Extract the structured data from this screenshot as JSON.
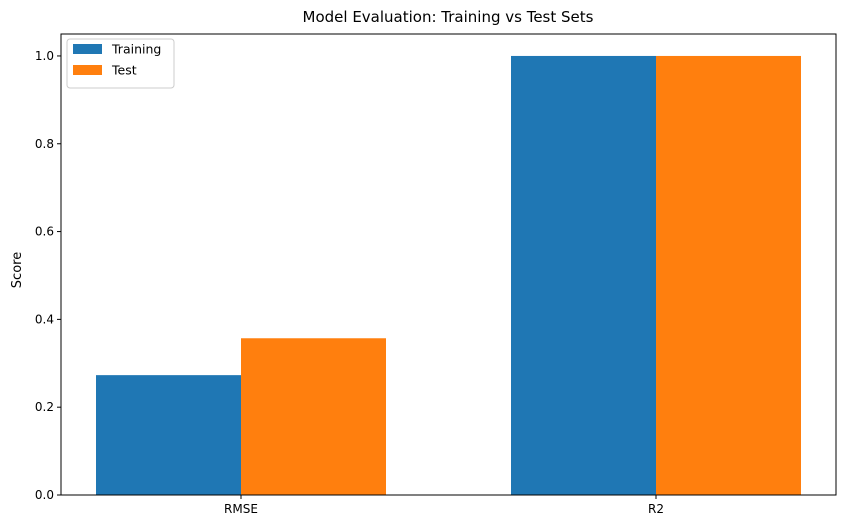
{
  "chart_data": {
    "type": "bar",
    "title": "Model Evaluation: Training vs Test Sets",
    "xlabel": "",
    "ylabel": "Score",
    "categories": [
      "RMSE",
      "R2"
    ],
    "series": [
      {
        "name": "Training",
        "values": [
          0.273,
          1.0
        ],
        "color": "#1f77b4"
      },
      {
        "name": "Test",
        "values": [
          0.357,
          1.0
        ],
        "color": "#ff7f0e"
      }
    ],
    "ylim": [
      0,
      1.05
    ],
    "yticks": [
      "0.0",
      "0.2",
      "0.4",
      "0.6",
      "0.8",
      "1.0"
    ],
    "grid": false,
    "legend_position": "top-left"
  }
}
